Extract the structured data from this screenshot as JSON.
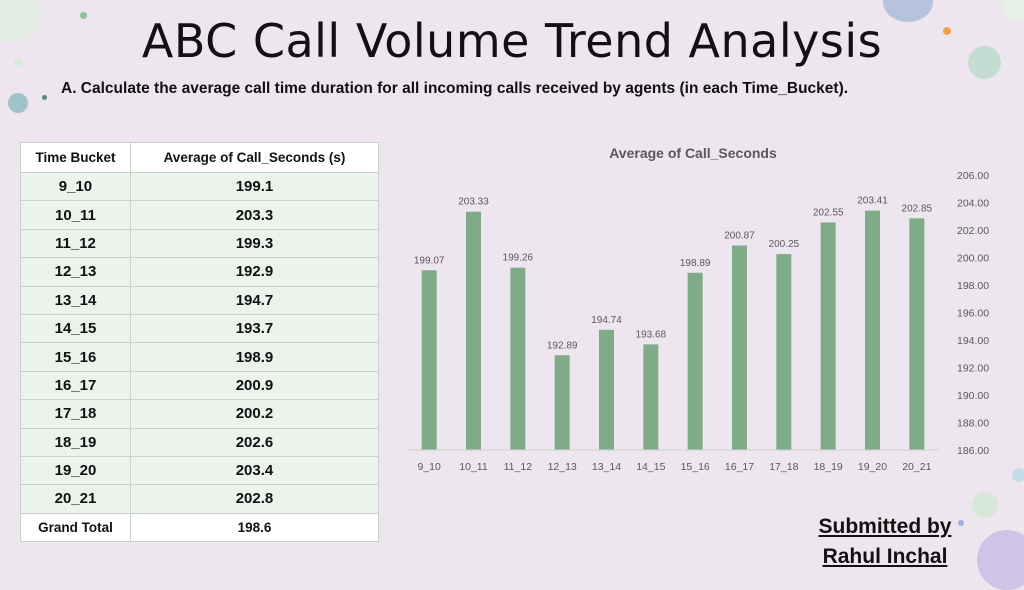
{
  "title": "ABC Call Volume Trend Analysis",
  "subtitle": "A. Calculate the average call time duration for all incoming calls received by agents (in each Time_Bucket).",
  "table": {
    "headers": [
      "Time Bucket",
      "Average of Call_Seconds (s)"
    ],
    "rows": [
      [
        "9_10",
        "199.1"
      ],
      [
        "10_11",
        "203.3"
      ],
      [
        "11_12",
        "199.3"
      ],
      [
        "12_13",
        "192.9"
      ],
      [
        "13_14",
        "194.7"
      ],
      [
        "14_15",
        "193.7"
      ],
      [
        "15_16",
        "198.9"
      ],
      [
        "16_17",
        "200.9"
      ],
      [
        "17_18",
        "200.2"
      ],
      [
        "18_19",
        "202.6"
      ],
      [
        "19_20",
        "203.4"
      ],
      [
        "20_21",
        "202.8"
      ]
    ],
    "total_label": "Grand Total",
    "total_value": "198.6"
  },
  "submitted": {
    "line1": "Submitted by",
    "line2": "Rahul Inchal"
  },
  "colors": {
    "bar": "#7fab88",
    "background": "#ede6ee"
  },
  "chart_data": {
    "type": "bar",
    "title": "Average of Call_Seconds",
    "categories": [
      "9_10",
      "10_11",
      "11_12",
      "12_13",
      "13_14",
      "14_15",
      "15_16",
      "16_17",
      "17_18",
      "18_19",
      "19_20",
      "20_21"
    ],
    "values": [
      199.07,
      203.33,
      199.26,
      192.89,
      194.74,
      193.68,
      198.89,
      200.87,
      200.25,
      202.55,
      203.41,
      202.85
    ],
    "data_labels": [
      "199.07",
      "203.33",
      "199.26",
      "192.89",
      "194.74",
      "193.68",
      "198.89",
      "200.87",
      "200.25",
      "202.55",
      "203.41",
      "202.85"
    ],
    "ylim": [
      186,
      206
    ],
    "yticks": [
      "186.00",
      "188.00",
      "190.00",
      "192.00",
      "194.00",
      "196.00",
      "198.00",
      "200.00",
      "202.00",
      "204.00",
      "206.00"
    ],
    "y_axis_position": "right",
    "grid": false,
    "legend": "none"
  }
}
